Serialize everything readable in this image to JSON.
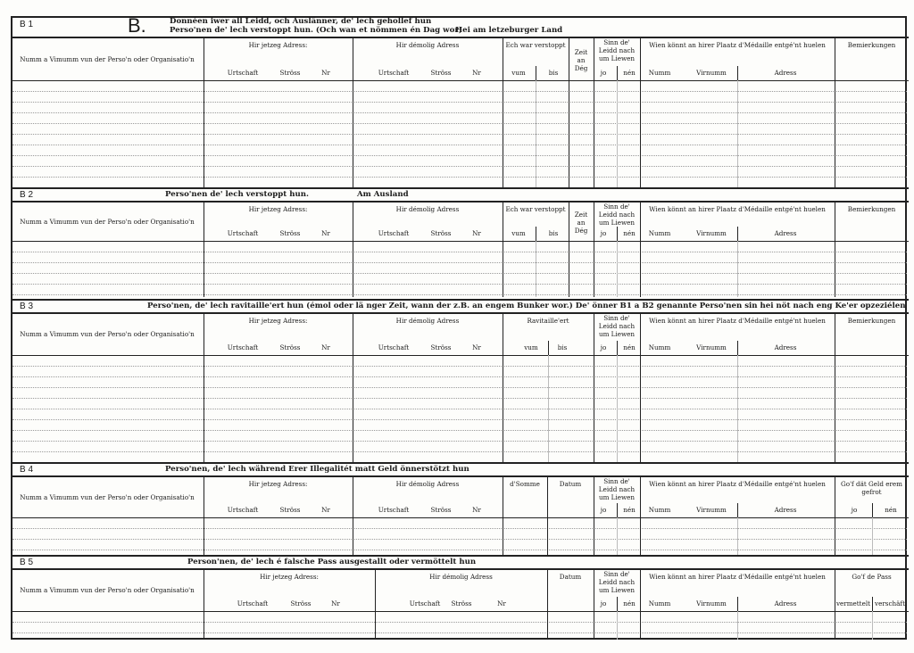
{
  "sections": [
    {
      "id": "B 1",
      "big_letter": "B.",
      "title_lines": [
        "Donnéen iwer all Leidd, och Auslänner, de' lech gehollef hun",
        "Perso'nen de' lech verstoppt hun. (Och wan et nömmen én Dag wor)"
      ],
      "title_extra": "Hei am letzeburger Land",
      "headers": [
        {
          "label": "Numm a Vimumm vun der Perso'n oder Organisatio'n",
          "subs": []
        },
        {
          "label": "Hir jetzeg Adress:",
          "subs": [
            "Urtschaft",
            "Ströss",
            "Nr"
          ]
        },
        {
          "label": "Hir démolig Adress",
          "subs": [
            "Urtschaft",
            "Ströss",
            "Nr"
          ]
        },
        {
          "label": "Ech war verstoppt",
          "subs": [
            "vum",
            "bis"
          ]
        },
        {
          "label": "Zeit an Dég",
          "subs": []
        },
        {
          "label": "Sinn de' Leidd nach um Liewen",
          "subs": [
            "jo",
            "nén"
          ]
        },
        {
          "label": "Wien könnt an hirer Plaatz d'Médaille entgé'nt huelen",
          "subs": [
            "Numm",
            "Virnumm",
            "Adress"
          ]
        },
        {
          "label": "Bemierkungen",
          "subs": []
        }
      ]
    },
    {
      "id": "B 2",
      "title_lines": [
        "Perso'nen de' lech verstoppt hun."
      ],
      "title_extra": "Am Ausland",
      "headers": [
        {
          "label": "Numm a Vimumm vun der Perso'n oder Organisatio'n",
          "subs": []
        },
        {
          "label": "Hir jetzeg Adress:",
          "subs": [
            "Urtschaft",
            "Ströss",
            "Nr"
          ]
        },
        {
          "label": "Hir démolig Adress",
          "subs": [
            "Urtschaft",
            "Ströss",
            "Nr"
          ]
        },
        {
          "label": "Ech war verstoppt",
          "subs": [
            "vum",
            "bis"
          ]
        },
        {
          "label": "Zeit an Dég",
          "subs": []
        },
        {
          "label": "Sinn de' Leidd nach um Liewen",
          "subs": [
            "jo",
            "nén"
          ]
        },
        {
          "label": "Wien könnt an hirer Plaatz d'Médaille entgé'nt huelen",
          "subs": [
            "Numm",
            "Virnumm",
            "Adress"
          ]
        },
        {
          "label": "Bemierkungen",
          "subs": []
        }
      ]
    },
    {
      "id": "B 3",
      "title_lines": [
        "Perso'nen, de' lech ravitaille'ert hun (émol oder lä nger Zeit, wann der z.B. an engem Bunker wor.)   De' önner B1 a B2 genannte Perso'nen sin hei nöt nach eng Ke'er opzeziélen"
      ],
      "headers": [
        {
          "label": "Numm a Vimumm vun der Perso'n oder Organisatio'n",
          "subs": []
        },
        {
          "label": "Hir jetzeg Adress:",
          "subs": [
            "Urtschaft",
            "Ströss",
            "Nr"
          ]
        },
        {
          "label": "Hir démolig Adress",
          "subs": [
            "Urtschaft",
            "Ströss",
            "Nr"
          ]
        },
        {
          "label": "Ravitaille'ert",
          "subs": [
            "vum",
            "bis"
          ]
        },
        {
          "label": "Sinn de' Leidd nach um Liewen",
          "subs": [
            "jo",
            "nén"
          ]
        },
        {
          "label": "Wien könnt an hirer Plaatz d'Médaille entgé'nt huelen",
          "subs": [
            "Numm",
            "Virnumm",
            "Adress"
          ]
        },
        {
          "label": "Bemierkungen",
          "subs": []
        }
      ]
    },
    {
      "id": "B 4",
      "title_lines": [
        "Perso'nen, de' lech während Erer Illegalitét matt  Geld önnerstötzt hun"
      ],
      "headers": [
        {
          "label": "Numm a Vimumm vun der Perso'n oder Organisatio'n",
          "subs": []
        },
        {
          "label": "Hir jetzeg Adress:",
          "subs": [
            "Urtschaft",
            "Ströss",
            "Nr"
          ]
        },
        {
          "label": "Hir démolig Adress",
          "subs": [
            "Urtschaft",
            "Ströss",
            "Nr"
          ]
        },
        {
          "label": "d'Somme",
          "subs": []
        },
        {
          "label": "Datum",
          "subs": []
        },
        {
          "label": "Sinn de' Leidd nach um Liewen",
          "subs": [
            "jo",
            "nén"
          ]
        },
        {
          "label": "Wien könnt an hirer Plaatz d'Médaille entgé'nt huelen",
          "subs": [
            "Numm",
            "Virnumm",
            "Adress"
          ]
        },
        {
          "label": "Go'f dät Geld erem gefrot",
          "subs": [
            "jo",
            "nén"
          ]
        }
      ]
    },
    {
      "id": "B 5",
      "title_lines": [
        "Person'nen, de' lech é falsche Pass ausgestallt oder  vermöttelt hun"
      ],
      "headers": [
        {
          "label": "Numm a Vimumm vun der Perso'n oder Organisatio'n",
          "subs": []
        },
        {
          "label": "Hir jetzeg Adress:",
          "subs": [
            "Urtschaft",
            "Ströss",
            "Nr"
          ]
        },
        {
          "label": "Hir démolig Adress",
          "subs": [
            "Urtschaft",
            "Ströss",
            "Nr"
          ]
        },
        {
          "label": "Datum",
          "subs": []
        },
        {
          "label": "Sinn de' Leidd nach um Liewen",
          "subs": [
            "jo",
            "nén"
          ]
        },
        {
          "label": "Wien könnt an hirer Plaatz d'Médaille entgé'nt huelen",
          "subs": [
            "Numm",
            "Virnumm",
            "Adress"
          ]
        },
        {
          "label": "Go'f de Pass",
          "subs": [
            "vermettelt",
            "verschäft"
          ]
        }
      ]
    }
  ]
}
